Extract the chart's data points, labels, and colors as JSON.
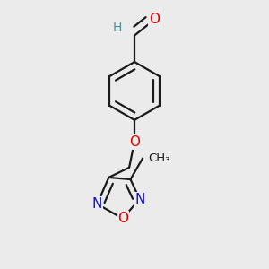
{
  "bg_color": "#ebebeb",
  "bond_color": "#1a1a1a",
  "bond_width": 1.6,
  "dbo": 0.055,
  "atom_colors": {
    "O": "#e00000",
    "N": "#1010cc",
    "H": "#4a9090",
    "C": "#1a1a1a"
  },
  "fs": 11,
  "xlim": [
    -0.6,
    0.6
  ],
  "ylim": [
    -1.05,
    0.95
  ]
}
